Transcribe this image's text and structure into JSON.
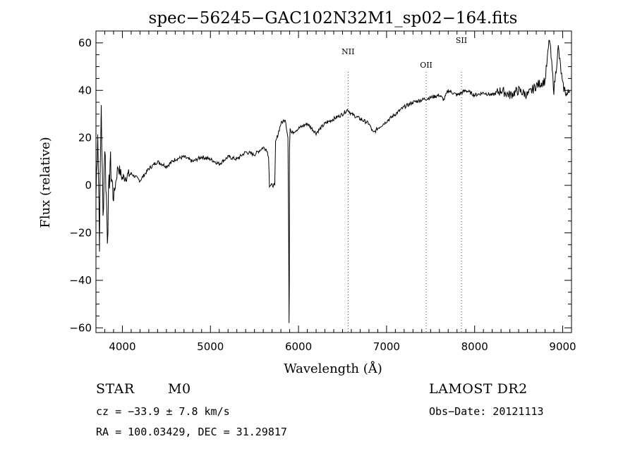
{
  "chart_data": {
    "type": "line",
    "title": "spec−56245−GAC102N32M1_sp02−164.fits",
    "xlabel": "Wavelength (Å)",
    "ylabel": "Flux (relative)",
    "xlim": [
      3700,
      9100
    ],
    "ylim": [
      -62,
      65
    ],
    "xticks": [
      4000,
      5000,
      6000,
      7000,
      8000,
      9000
    ],
    "yticks": [
      -60,
      -40,
      -20,
      0,
      20,
      40,
      60
    ],
    "grid": false,
    "series": [
      {
        "x": [
          3700,
          3720,
          3740,
          3760,
          3780,
          3800,
          3830,
          3860,
          3900,
          3950,
          4000,
          4100,
          4200,
          4300,
          4400,
          4500,
          4600,
          4700,
          4800,
          4900,
          5000,
          5100,
          5200,
          5300,
          5400,
          5500,
          5600,
          5640,
          5660,
          5670,
          5730,
          5740,
          5800,
          5850,
          5880,
          5888,
          5893,
          5896,
          5898,
          5905,
          5920,
          6000,
          6100,
          6200,
          6300,
          6400,
          6500,
          6560,
          6600,
          6700,
          6800,
          6850,
          6900,
          7000,
          7100,
          7200,
          7300,
          7400,
          7500,
          7600,
          7650,
          7700,
          7800,
          7900,
          8000,
          8100,
          8200,
          8300,
          8400,
          8500,
          8600,
          8700,
          8800,
          8850,
          8900,
          8950,
          9000,
          9050,
          9080
        ],
        "y": [
          -5,
          25,
          -22,
          35,
          -15,
          18,
          -20,
          10,
          -5,
          8,
          3,
          5,
          2,
          7,
          10,
          8,
          11,
          12,
          10,
          12,
          11,
          9,
          12,
          11,
          14,
          13,
          16,
          15,
          12,
          0,
          0,
          18,
          26,
          28,
          20,
          -20,
          -58,
          -40,
          15,
          24,
          22,
          24,
          26,
          22,
          26,
          28,
          30,
          32,
          30,
          28,
          26,
          22,
          24,
          27,
          30,
          33,
          35,
          36,
          37,
          38,
          36,
          40,
          38,
          40,
          38,
          39,
          38,
          40,
          38,
          40,
          38,
          42,
          44,
          62,
          40,
          58,
          42,
          38,
          40
        ]
      }
    ],
    "annotations": [
      {
        "label": "NII",
        "x": 6563
      },
      {
        "label": "OII",
        "x": 7450
      },
      {
        "label": "SII",
        "x": 7850
      }
    ]
  },
  "info": {
    "object_class": "STAR",
    "subclass": "M0",
    "survey": "LAMOST DR2",
    "cz": "cz = −33.9 ± 7.8 km/s",
    "obs_date": "Obs−Date: 20121113",
    "radec": "RA = 100.03429, DEC =  31.29817"
  }
}
